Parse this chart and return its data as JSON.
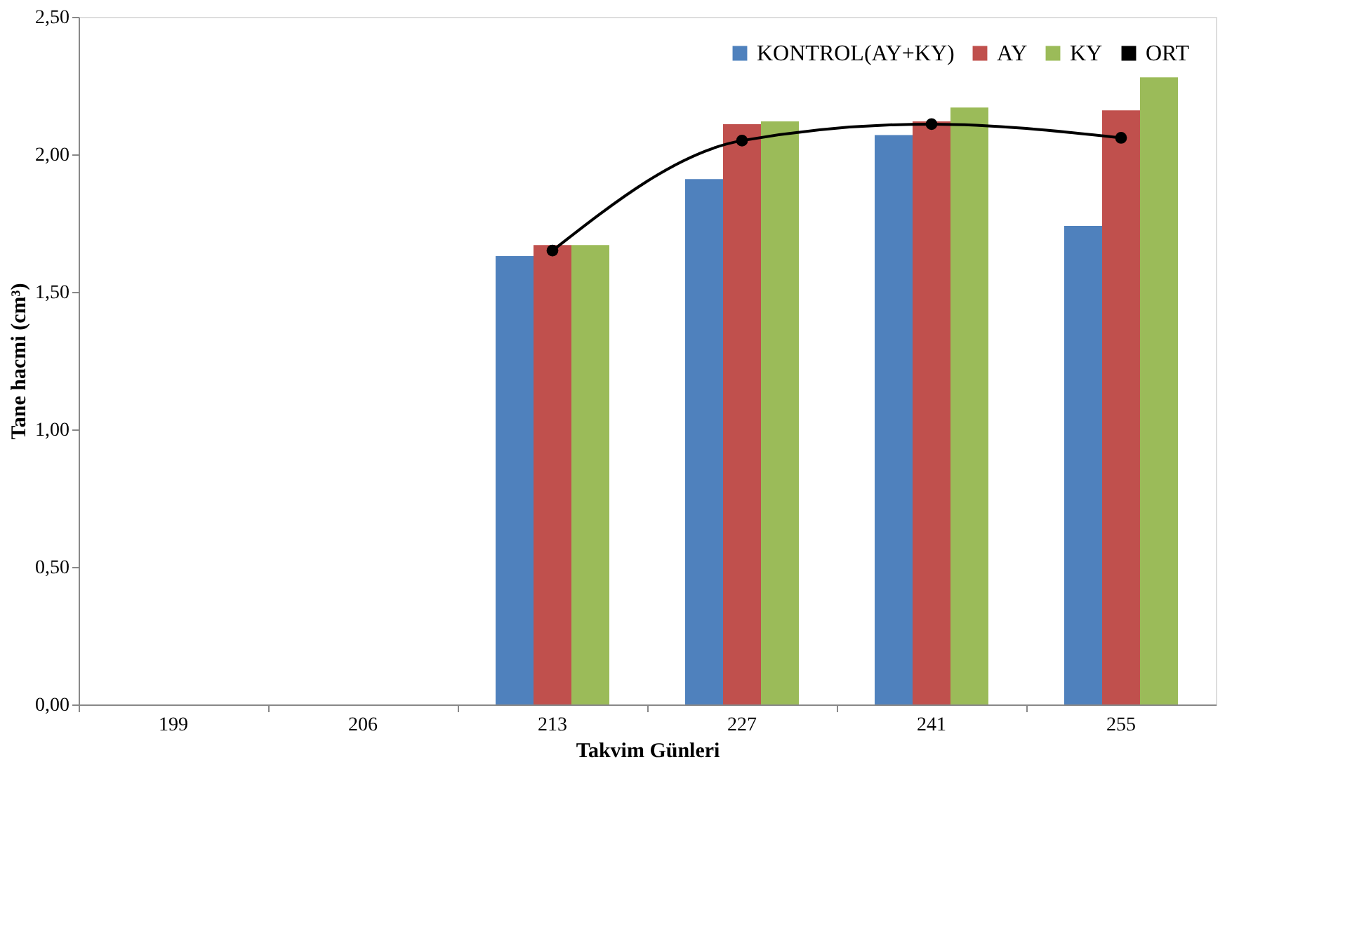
{
  "chart_data": {
    "type": "bar",
    "xlabel": "Takvim Günleri",
    "ylabel": "Tane hacmi (cm³)",
    "categories": [
      "199",
      "206",
      "213",
      "227",
      "241",
      "255"
    ],
    "series": [
      {
        "name": "KONTROL(AY+KY)",
        "color": "#4f81bd",
        "values": [
          null,
          null,
          1.63,
          1.91,
          2.07,
          1.74
        ]
      },
      {
        "name": "AY",
        "color": "#c0504d",
        "values": [
          null,
          null,
          1.67,
          2.11,
          2.12,
          2.16
        ]
      },
      {
        "name": "KY",
        "color": "#9bbb59",
        "values": [
          null,
          null,
          1.67,
          2.12,
          2.17,
          2.28
        ]
      },
      {
        "name": "ORT",
        "type": "line",
        "color": "#000000",
        "marker": "circle",
        "values": [
          null,
          null,
          1.65,
          2.05,
          2.11,
          2.06
        ]
      }
    ],
    "ylim": [
      0,
      2.5
    ],
    "yticks": [
      {
        "value": 0,
        "label": "0,00"
      },
      {
        "value": 0.5,
        "label": "0,50"
      },
      {
        "value": 1,
        "label": "1,00"
      },
      {
        "value": 1.5,
        "label": "1,50"
      },
      {
        "value": 2,
        "label": "2,00"
      },
      {
        "value": 2.5,
        "label": "2,50"
      }
    ],
    "grid": false,
    "legend": "top right"
  }
}
